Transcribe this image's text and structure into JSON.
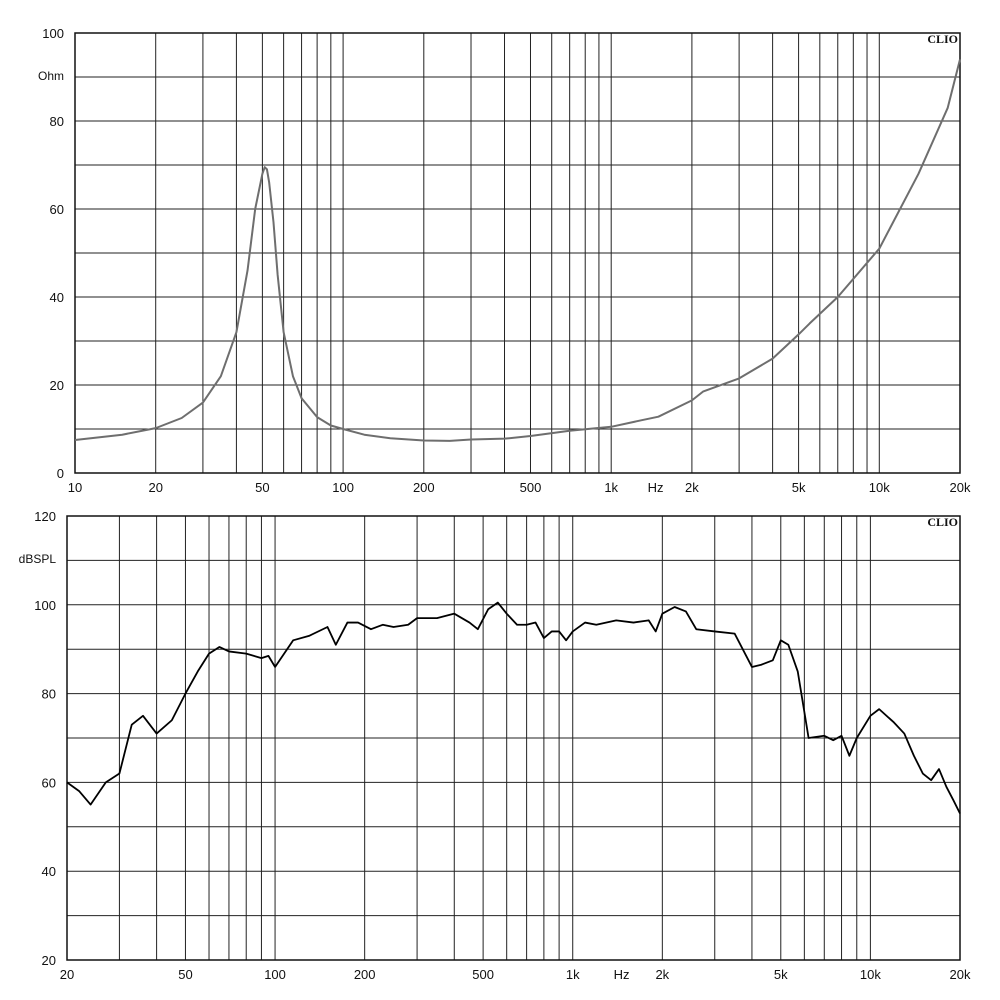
{
  "chart_data": [
    {
      "type": "line",
      "title": "",
      "brand": "CLIO",
      "xlabel": "",
      "ylabel": "Ohm",
      "x_unit": "Hz",
      "x_scale": "log",
      "xlim": [
        10,
        20000
      ],
      "ylim": [
        0,
        100
      ],
      "grid": true,
      "y_ticks": [
        0,
        20,
        40,
        60,
        80,
        100
      ],
      "y_tick_labels": [
        "0",
        "20",
        "40",
        "60",
        "80",
        "100"
      ],
      "x_tick_values": [
        10,
        20,
        50,
        100,
        200,
        500,
        1000,
        2000,
        5000,
        10000,
        20000
      ],
      "x_tick_labels": [
        "10",
        "20",
        "50",
        "100",
        "200",
        "500",
        "1k",
        "2k",
        "5k",
        "10k",
        "20k"
      ],
      "x_gridlines": [
        10,
        20,
        30,
        40,
        50,
        60,
        70,
        80,
        90,
        100,
        200,
        300,
        400,
        500,
        600,
        700,
        800,
        900,
        1000,
        2000,
        3000,
        4000,
        5000,
        6000,
        7000,
        8000,
        9000,
        10000,
        20000
      ],
      "series": [
        {
          "name": "",
          "color": "#6e6e6e",
          "x": [
            10,
            15,
            20,
            25,
            30,
            35,
            40,
            44,
            47,
            50,
            51,
            52,
            53,
            55,
            57,
            60,
            65,
            70,
            80,
            90,
            100,
            120,
            150,
            200,
            250,
            300,
            400,
            500,
            700,
            1000,
            1300,
            1500,
            2000,
            2200,
            3000,
            4000,
            5000,
            5500,
            7000,
            10000,
            14000,
            18000,
            20000
          ],
          "y": [
            7.5,
            8.7,
            10.2,
            12.5,
            16,
            22,
            32,
            46,
            60,
            68,
            69.5,
            69,
            66,
            57,
            45,
            32,
            22,
            17,
            12.7,
            10.8,
            10,
            8.7,
            7.9,
            7.4,
            7.3,
            7.6,
            7.8,
            8.4,
            9.6,
            10.5,
            12,
            12.8,
            16.5,
            18.5,
            21.5,
            26,
            31.5,
            34,
            40,
            51,
            68,
            83,
            94
          ]
        }
      ]
    },
    {
      "type": "line",
      "title": "",
      "brand": "CLIO",
      "xlabel": "",
      "ylabel": "dBSPL",
      "x_unit": "Hz",
      "x_scale": "log",
      "xlim": [
        20,
        20000
      ],
      "ylim": [
        20,
        120
      ],
      "grid": true,
      "y_ticks": [
        20,
        40,
        60,
        80,
        100,
        120
      ],
      "y_tick_labels": [
        "20",
        "40",
        "60",
        "80",
        "100",
        "120"
      ],
      "x_tick_values": [
        20,
        50,
        100,
        200,
        500,
        1000,
        2000,
        5000,
        10000,
        20000
      ],
      "x_tick_labels": [
        "20",
        "50",
        "100",
        "200",
        "500",
        "1k",
        "2k",
        "5k",
        "10k",
        "20k"
      ],
      "x_gridlines": [
        20,
        30,
        40,
        50,
        60,
        70,
        80,
        90,
        100,
        200,
        300,
        400,
        500,
        600,
        700,
        800,
        900,
        1000,
        2000,
        3000,
        4000,
        5000,
        6000,
        7000,
        8000,
        9000,
        10000,
        20000
      ],
      "series": [
        {
          "name": "",
          "color": "#000000",
          "x": [
            20,
            22,
            24,
            27,
            30,
            33,
            36,
            40,
            45,
            50,
            55,
            60,
            65,
            70,
            80,
            90,
            95,
            100,
            115,
            130,
            150,
            160,
            175,
            190,
            210,
            230,
            250,
            280,
            300,
            350,
            400,
            450,
            480,
            520,
            560,
            600,
            650,
            700,
            750,
            800,
            850,
            900,
            950,
            1000,
            1100,
            1200,
            1400,
            1600,
            1800,
            1900,
            2000,
            2200,
            2400,
            2600,
            3000,
            3500,
            4000,
            4300,
            4700,
            5000,
            5300,
            5700,
            6200,
            7000,
            7500,
            8000,
            8500,
            9000,
            10000,
            10700,
            12000,
            13000,
            14000,
            15000,
            16000,
            17000,
            18000,
            19000,
            20000
          ],
          "y": [
            60,
            58,
            55,
            60,
            62,
            73,
            75,
            71,
            74,
            80,
            85,
            89,
            90.5,
            89.5,
            89,
            88,
            88.5,
            86,
            92,
            93,
            95,
            91,
            96,
            96,
            94.5,
            95.5,
            95,
            95.5,
            97,
            97,
            98,
            96,
            94.5,
            99,
            100.5,
            98,
            95.5,
            95.5,
            96,
            92.5,
            94,
            94,
            92,
            94,
            96,
            95.5,
            96.5,
            96,
            96.5,
            94,
            98,
            99.5,
            98.5,
            94.5,
            94,
            93.5,
            86,
            86.5,
            87.5,
            92,
            91,
            85,
            70,
            70.5,
            69.5,
            70.5,
            66,
            70,
            75,
            76.5,
            73.5,
            71,
            66,
            62,
            60.5,
            63,
            59,
            56,
            53
          ]
        }
      ]
    }
  ]
}
